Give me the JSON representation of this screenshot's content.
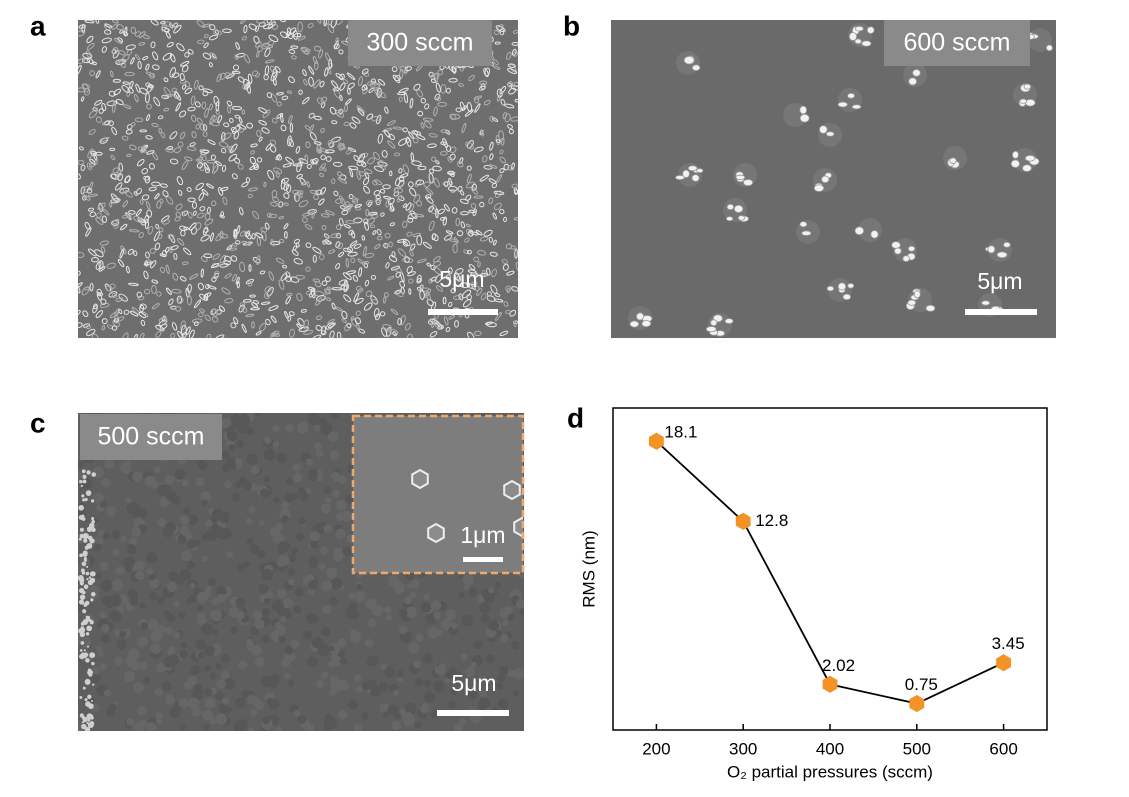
{
  "panels": [
    {
      "letter": "a",
      "label": "300 sccm",
      "scale": "5μm"
    },
    {
      "letter": "b",
      "label": "600 sccm",
      "scale": "5μm"
    },
    {
      "letter": "c",
      "label": "500 sccm",
      "scale": "5μm",
      "inset_scale": "1μm"
    }
  ],
  "chart_data": {
    "type": "line",
    "panel": "d",
    "xlabel": "O₂ partial pressures (sccm)",
    "ylabel": "RMS (nm)",
    "x": [
      200,
      300,
      400,
      500,
      600
    ],
    "values": [
      18.1,
      12.8,
      2.02,
      0.75,
      3.45
    ],
    "color": "#f39325",
    "xlim": [
      150,
      650
    ],
    "xticks": [
      200,
      300,
      400,
      500,
      600
    ],
    "ylim": [
      -1,
      20.3
    ]
  }
}
